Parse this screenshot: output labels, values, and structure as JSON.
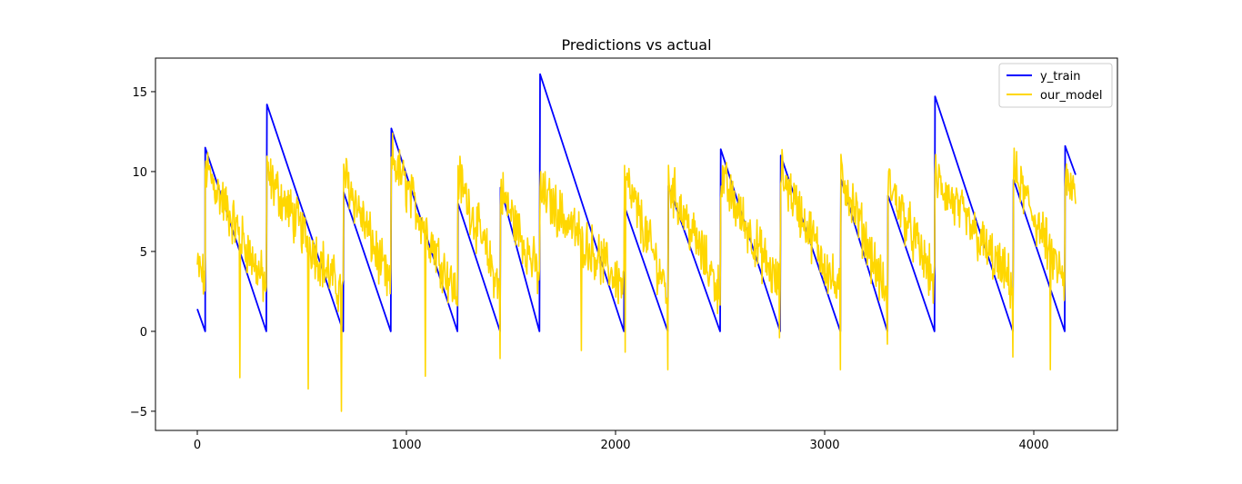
{
  "chart_data": {
    "type": "line",
    "title": "Predictions vs actual",
    "xlabel": "",
    "ylabel": "",
    "xlim": [
      -200,
      4400
    ],
    "ylim": [
      -6.2,
      17.1
    ],
    "x_ticks": [
      0,
      1000,
      2000,
      3000,
      4000
    ],
    "y_ticks": [
      -5,
      0,
      5,
      10,
      15
    ],
    "grid": false,
    "legend_position": "top-right",
    "series": [
      {
        "name": "y_train",
        "color": "#0000ff",
        "points": [
          [
            0,
            1.4
          ],
          [
            38,
            0.0
          ],
          [
            38,
            11.5
          ],
          [
            330,
            0.0
          ],
          [
            333,
            14.2
          ],
          [
            698,
            0.0
          ],
          [
            700,
            8.7
          ],
          [
            925,
            0.0
          ],
          [
            928,
            12.7
          ],
          [
            1244,
            0.0
          ],
          [
            1247,
            8.0
          ],
          [
            1448,
            0.0
          ],
          [
            1450,
            9.0
          ],
          [
            1636,
            0.0
          ],
          [
            1639,
            16.1
          ],
          [
            2040,
            0.0
          ],
          [
            2043,
            7.8
          ],
          [
            2250,
            0.0
          ],
          [
            2253,
            9.1
          ],
          [
            2500,
            0.0
          ],
          [
            2503,
            11.4
          ],
          [
            2787,
            0.0
          ],
          [
            2790,
            11.0
          ],
          [
            3075,
            0.0
          ],
          [
            3078,
            9.5
          ],
          [
            3300,
            0.0
          ],
          [
            3303,
            8.5
          ],
          [
            3525,
            0.0
          ],
          [
            3528,
            14.7
          ],
          [
            3900,
            0.0
          ],
          [
            3903,
            9.5
          ],
          [
            4148,
            0.0
          ],
          [
            4150,
            11.6
          ],
          [
            4200,
            9.8
          ]
        ]
      },
      {
        "name": "our_model",
        "color": "#ffd700",
        "segments": [
          {
            "x0": 0,
            "x1": 38,
            "start": 4.0,
            "end": 3.2
          },
          {
            "x0": 38,
            "x1": 330,
            "start": 10.3,
            "end": 2.8
          },
          {
            "x0": 333,
            "x1": 698,
            "start": 9.8,
            "end": 2.2
          },
          {
            "x0": 700,
            "x1": 925,
            "start": 10.0,
            "end": 2.6
          },
          {
            "x0": 928,
            "x1": 1244,
            "start": 11.0,
            "end": 2.2
          },
          {
            "x0": 1247,
            "x1": 1448,
            "start": 9.8,
            "end": 2.6
          },
          {
            "x0": 1450,
            "x1": 1636,
            "start": 8.8,
            "end": 3.4
          },
          {
            "x0": 1639,
            "x1": 2040,
            "start": 8.8,
            "end": 2.8
          },
          {
            "x0": 2043,
            "x1": 2250,
            "start": 9.6,
            "end": 2.4
          },
          {
            "x0": 2253,
            "x1": 2500,
            "start": 9.4,
            "end": 2.4
          },
          {
            "x0": 2503,
            "x1": 2787,
            "start": 9.6,
            "end": 2.6
          },
          {
            "x0": 2790,
            "x1": 3075,
            "start": 10.0,
            "end": 2.2
          },
          {
            "x0": 3078,
            "x1": 3300,
            "start": 10.0,
            "end": 2.0
          },
          {
            "x0": 3303,
            "x1": 3525,
            "start": 9.4,
            "end": 3.0
          },
          {
            "x0": 3528,
            "x1": 3900,
            "start": 9.6,
            "end": 2.8
          },
          {
            "x0": 3903,
            "x1": 4148,
            "start": 10.0,
            "end": 3.0
          },
          {
            "x0": 4150,
            "x1": 4200,
            "start": 9.2,
            "end": 8.6
          }
        ],
        "spikes": [
          [
            205,
            -2.9
          ],
          [
            530,
            -3.6
          ],
          [
            690,
            -5.0
          ],
          [
            1090,
            -2.8
          ],
          [
            1448,
            -1.7
          ],
          [
            1836,
            -1.2
          ],
          [
            2047,
            -1.3
          ],
          [
            2250,
            -2.4
          ],
          [
            2785,
            -0.4
          ],
          [
            3075,
            -2.4
          ],
          [
            3300,
            -0.8
          ],
          [
            3900,
            -1.6
          ],
          [
            4080,
            -2.4
          ]
        ]
      }
    ]
  }
}
